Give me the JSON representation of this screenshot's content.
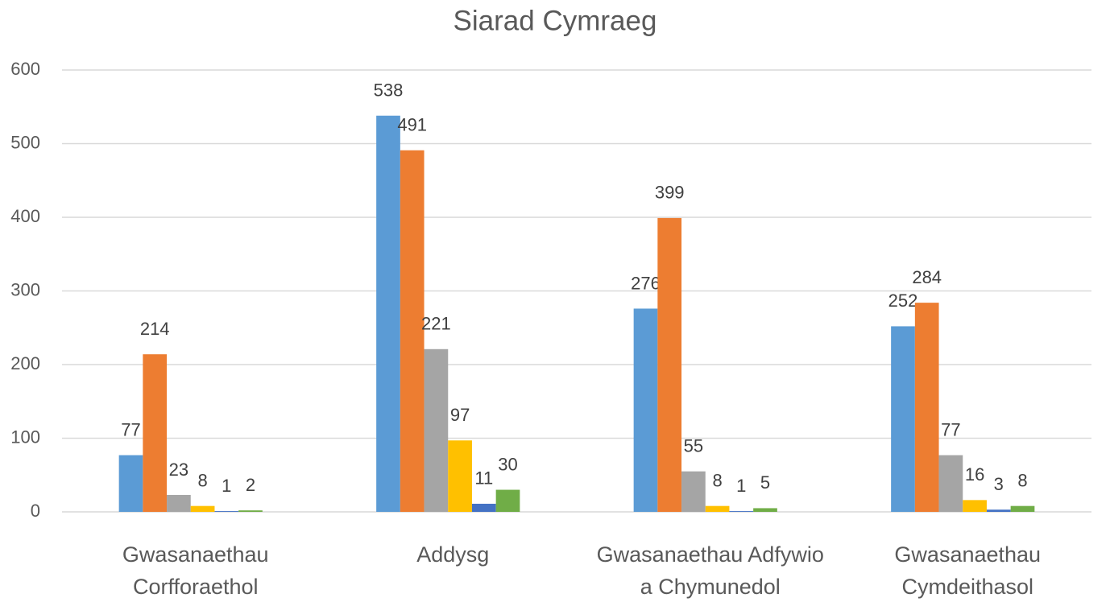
{
  "chart_data": {
    "type": "bar",
    "title": "Siarad Cymraeg",
    "categories": [
      "Gwasanaethau Corfforaethol",
      "Addysg",
      "Gwasanaethau Adfywio a Chymunedol",
      "Gwasanaethau Cymdeithasol"
    ],
    "series": [
      {
        "color": "#5b9bd5",
        "values": [
          77,
          538,
          276,
          252
        ]
      },
      {
        "color": "#ed7d31",
        "values": [
          214,
          491,
          399,
          284
        ]
      },
      {
        "color": "#a5a5a5",
        "values": [
          23,
          221,
          55,
          77
        ]
      },
      {
        "color": "#ffc000",
        "values": [
          8,
          97,
          8,
          16
        ]
      },
      {
        "color": "#4472c4",
        "values": [
          1,
          11,
          1,
          3
        ]
      },
      {
        "color": "#70ad47",
        "values": [
          2,
          30,
          5,
          8
        ]
      }
    ],
    "ylim": [
      0,
      600
    ],
    "yticks": [
      0,
      100,
      200,
      300,
      400,
      500,
      600
    ],
    "grid": true
  }
}
